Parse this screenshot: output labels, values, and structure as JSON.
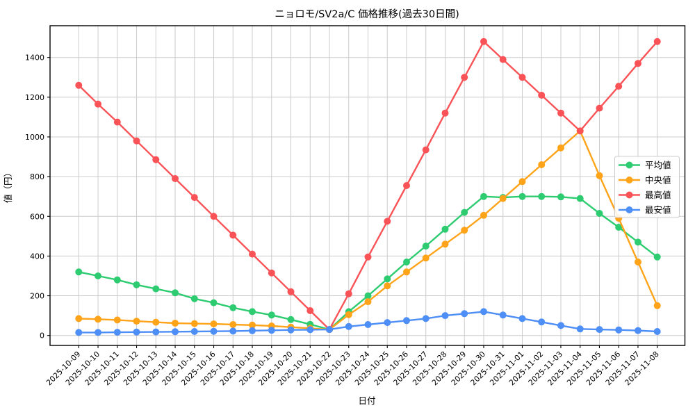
{
  "title": "ニョロモ/SV2a/C 価格推移(過去30日間)",
  "xlabel": "日付",
  "ylabel": "値（円）",
  "legend": {
    "position": "center right",
    "entries": [
      "平均値",
      "中央値",
      "最高値",
      "最安値"
    ]
  },
  "chart_data": {
    "type": "line",
    "title": "ニョロモ/SV2a/C 価格推移(過去30日間)",
    "xlabel": "日付",
    "ylabel": "値（円）",
    "grid": true,
    "x_tick_rotation": 45,
    "ylim": [
      -50,
      1560
    ],
    "yticks": [
      0,
      200,
      400,
      600,
      800,
      1000,
      1200,
      1400
    ],
    "categories": [
      "2025-10-09",
      "2025-10-10",
      "2025-10-11",
      "2025-10-12",
      "2025-10-13",
      "2025-10-14",
      "2025-10-15",
      "2025-10-16",
      "2025-10-17",
      "2025-10-18",
      "2025-10-19",
      "2025-10-20",
      "2025-10-21",
      "2025-10-22",
      "2025-10-23",
      "2025-10-24",
      "2025-10-25",
      "2025-10-26",
      "2025-10-27",
      "2025-10-28",
      "2025-10-29",
      "2025-10-30",
      "2025-10-31",
      "2025-11-01",
      "2025-11-02",
      "2025-11-03",
      "2025-11-04",
      "2025-11-05",
      "2025-11-06",
      "2025-11-07",
      "2025-11-08"
    ],
    "series": [
      {
        "name": "平均値",
        "color": "#2ecc71",
        "values": [
          320,
          300,
          280,
          255,
          235,
          215,
          185,
          165,
          140,
          120,
          103,
          80,
          56,
          30,
          120,
          200,
          285,
          370,
          450,
          535,
          620,
          700,
          695,
          700,
          700,
          698,
          690,
          615,
          545,
          470,
          395
        ]
      },
      {
        "name": "中央値",
        "color": "#ffa319",
        "values": [
          85,
          82,
          78,
          72,
          67,
          62,
          60,
          58,
          55,
          52,
          48,
          42,
          36,
          30,
          105,
          170,
          250,
          320,
          390,
          460,
          530,
          605,
          690,
          775,
          860,
          945,
          1030,
          805,
          590,
          370,
          150
        ]
      },
      {
        "name": "最高値",
        "color": "#fa5357",
        "values": [
          1260,
          1165,
          1075,
          980,
          885,
          790,
          695,
          600,
          505,
          410,
          315,
          220,
          125,
          30,
          210,
          395,
          575,
          755,
          935,
          1120,
          1300,
          1480,
          1390,
          1300,
          1210,
          1120,
          1030,
          1145,
          1255,
          1370,
          1480
        ]
      },
      {
        "name": "最安値",
        "color": "#4d8ef7",
        "values": [
          15,
          15,
          16,
          17,
          18,
          19,
          20,
          21,
          22,
          24,
          26,
          28,
          29,
          30,
          45,
          55,
          65,
          75,
          85,
          100,
          110,
          120,
          103,
          85,
          68,
          50,
          33,
          30,
          28,
          25,
          20
        ]
      }
    ]
  }
}
